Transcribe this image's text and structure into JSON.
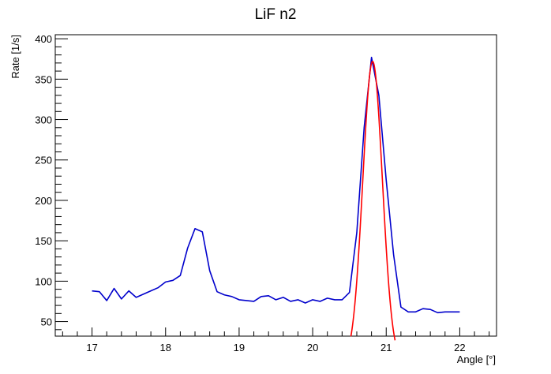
{
  "chart_data": {
    "type": "line",
    "title": "LiF n2",
    "xlabel": "Angle [°]",
    "ylabel": "Rate [1/s]",
    "xlim": [
      16.5,
      22.5
    ],
    "ylim": [
      32,
      405
    ],
    "x_ticks": [
      17,
      18,
      19,
      20,
      21,
      22
    ],
    "y_ticks": [
      50,
      100,
      150,
      200,
      250,
      300,
      350,
      400
    ],
    "grid": false,
    "legend": "none",
    "series": [
      {
        "color": "#0000cc",
        "points": [
          [
            17.0,
            88
          ],
          [
            17.1,
            87
          ],
          [
            17.2,
            76
          ],
          [
            17.3,
            91
          ],
          [
            17.4,
            78
          ],
          [
            17.5,
            88
          ],
          [
            17.6,
            80
          ],
          [
            17.7,
            84
          ],
          [
            17.8,
            88
          ],
          [
            17.9,
            92
          ],
          [
            18.0,
            99
          ],
          [
            18.1,
            101
          ],
          [
            18.2,
            107
          ],
          [
            18.3,
            141
          ],
          [
            18.4,
            165
          ],
          [
            18.5,
            161
          ],
          [
            18.6,
            113
          ],
          [
            18.7,
            87
          ],
          [
            18.8,
            83
          ],
          [
            18.9,
            81
          ],
          [
            19.0,
            77
          ],
          [
            19.1,
            76
          ],
          [
            19.2,
            75
          ],
          [
            19.3,
            81
          ],
          [
            19.4,
            82
          ],
          [
            19.5,
            77
          ],
          [
            19.6,
            80
          ],
          [
            19.7,
            75
          ],
          [
            19.8,
            77
          ],
          [
            19.9,
            73
          ],
          [
            20.0,
            77
          ],
          [
            20.1,
            75
          ],
          [
            20.2,
            79
          ],
          [
            20.3,
            77
          ],
          [
            20.4,
            77
          ],
          [
            20.5,
            86
          ],
          [
            20.6,
            160
          ],
          [
            20.7,
            290
          ],
          [
            20.8,
            377
          ],
          [
            20.9,
            330
          ],
          [
            21.0,
            225
          ],
          [
            21.1,
            133
          ],
          [
            21.2,
            68
          ],
          [
            21.3,
            62
          ],
          [
            21.4,
            62
          ],
          [
            21.5,
            66
          ],
          [
            21.6,
            65
          ],
          [
            21.7,
            61
          ],
          [
            21.8,
            62
          ],
          [
            21.9,
            62
          ],
          [
            22.0,
            62
          ]
        ]
      },
      {
        "color": "#ff0000",
        "fit": "gaussian",
        "x_range": [
          20.52,
          21.12
        ],
        "amplitude": 372,
        "mean": 20.815,
        "sigma": 0.133
      }
    ]
  }
}
